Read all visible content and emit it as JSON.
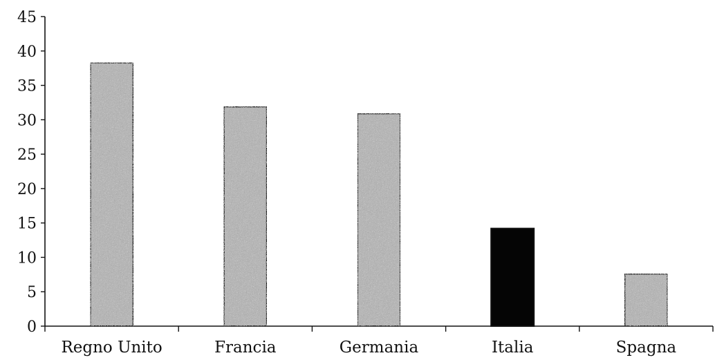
{
  "chart_data": {
    "type": "bar",
    "categories": [
      "Regno Unito",
      "Francia",
      "Germania",
      "Italia",
      "Spagna"
    ],
    "values": [
      38.3,
      31.9,
      30.9,
      14.2,
      7.6
    ],
    "highlight": [
      false,
      false,
      false,
      true,
      false
    ],
    "ylim": [
      0,
      45
    ],
    "yticks": [
      "0",
      "5",
      "10",
      "15",
      "20",
      "25",
      "30",
      "35",
      "40",
      "45"
    ],
    "title": "",
    "xlabel": "",
    "ylabel": "",
    "grid": false,
    "colors": {
      "bar_fill": "#b4b4b4",
      "bar_stroke": "#111111",
      "highlight_fill": "#050505",
      "axis": "#111111"
    }
  }
}
